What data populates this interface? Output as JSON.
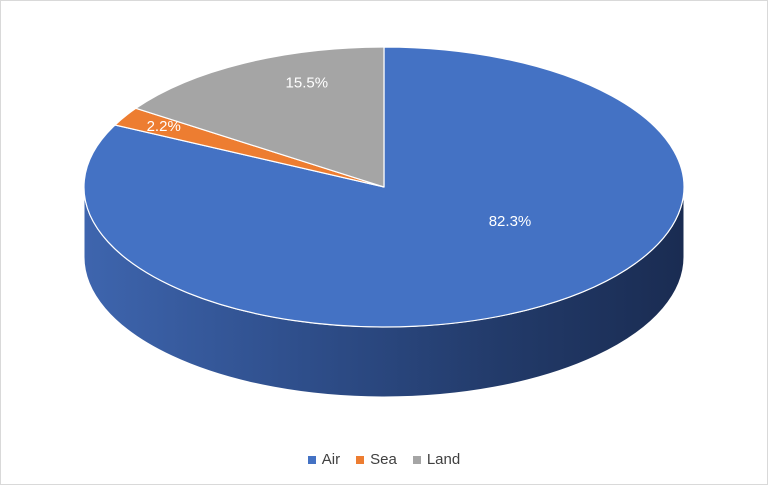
{
  "chart_data": {
    "type": "pie",
    "style": "3d",
    "title": "",
    "slices": [
      {
        "name": "Air",
        "value": 82.3,
        "label": "82.3%",
        "color": "#4472c4"
      },
      {
        "name": "Sea",
        "value": 2.2,
        "label": "2.2%",
        "color": "#ed7d31"
      },
      {
        "name": "Land",
        "value": 15.5,
        "label": "15.5%",
        "color": "#a5a5a5"
      }
    ],
    "legend_position": "bottom",
    "label_color": "#ffffff"
  }
}
